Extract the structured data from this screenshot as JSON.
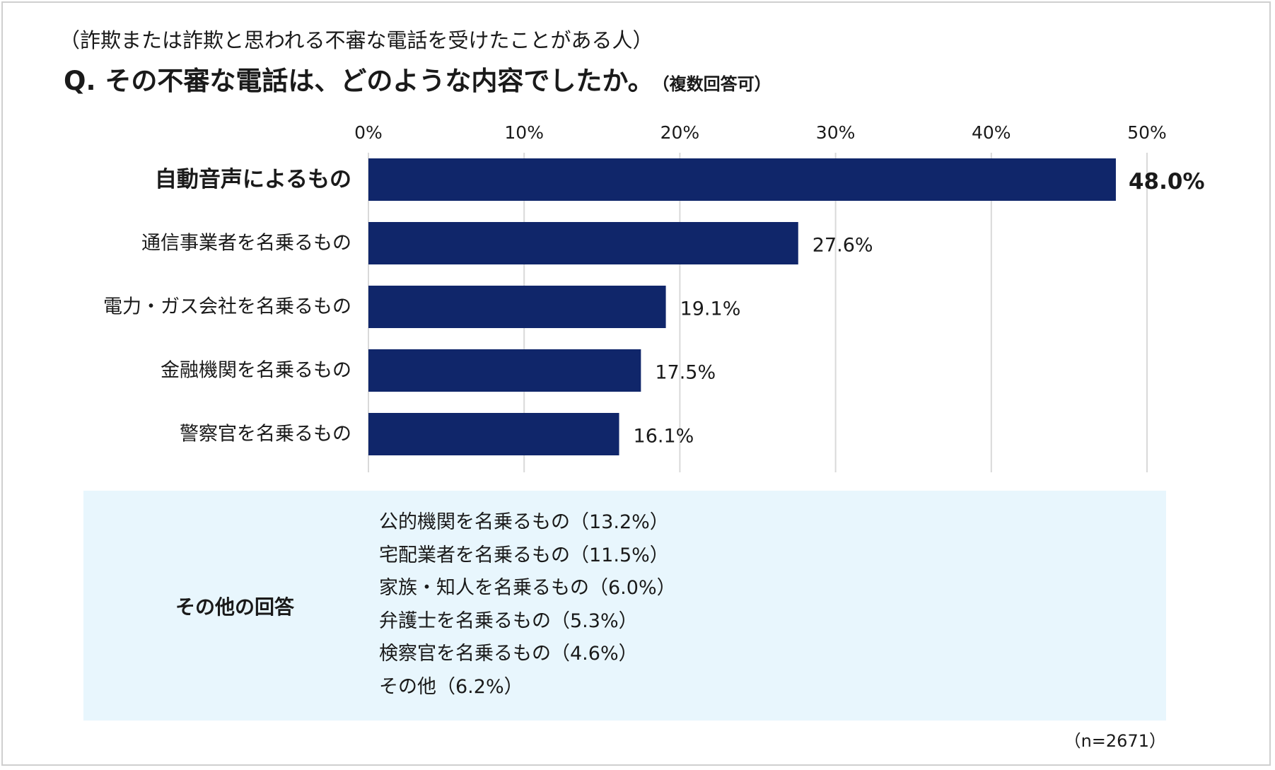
{
  "header": {
    "subtitle": "（詐欺または詐欺と思われる不審な電話を受けたことがある人）",
    "question": "Q. その不審な電話は、どのような内容でしたか。",
    "question_note": "（複数回答可）"
  },
  "chart_data": {
    "type": "bar",
    "orientation": "horizontal",
    "categories": [
      "自動音声によるもの",
      "通信事業者を名乗るもの",
      "電力・ガス会社を名乗るもの",
      "金融機関を名乗るもの",
      "警察官を名乗るもの"
    ],
    "values": [
      48.0,
      27.6,
      19.1,
      17.5,
      16.1
    ],
    "value_labels": [
      "48.0%",
      "27.6%",
      "19.1%",
      "17.5%",
      "16.1%"
    ],
    "highlight_index": 0,
    "xlim": [
      0,
      50
    ],
    "ticks": [
      0,
      10,
      20,
      30,
      40,
      50
    ],
    "tick_labels": [
      "0%",
      "10%",
      "20%",
      "30%",
      "40%",
      "50%"
    ],
    "axis_position": "top",
    "grid": true,
    "bar_color": "#10266a",
    "grid_color": "#d9d9d9"
  },
  "others": {
    "heading": "その他の回答",
    "items": [
      "公的機関を名乗るもの（13.2%）",
      "宅配業者を名乗るもの（11.5%）",
      "家族・知人を名乗るもの（6.0%）",
      "弁護士を名乗るもの（5.3%）",
      "検察官を名乗るもの（4.6%）",
      "その他（6.2%）"
    ],
    "background_color": "#e8f6fd"
  },
  "sample_size": "（n=2671）"
}
